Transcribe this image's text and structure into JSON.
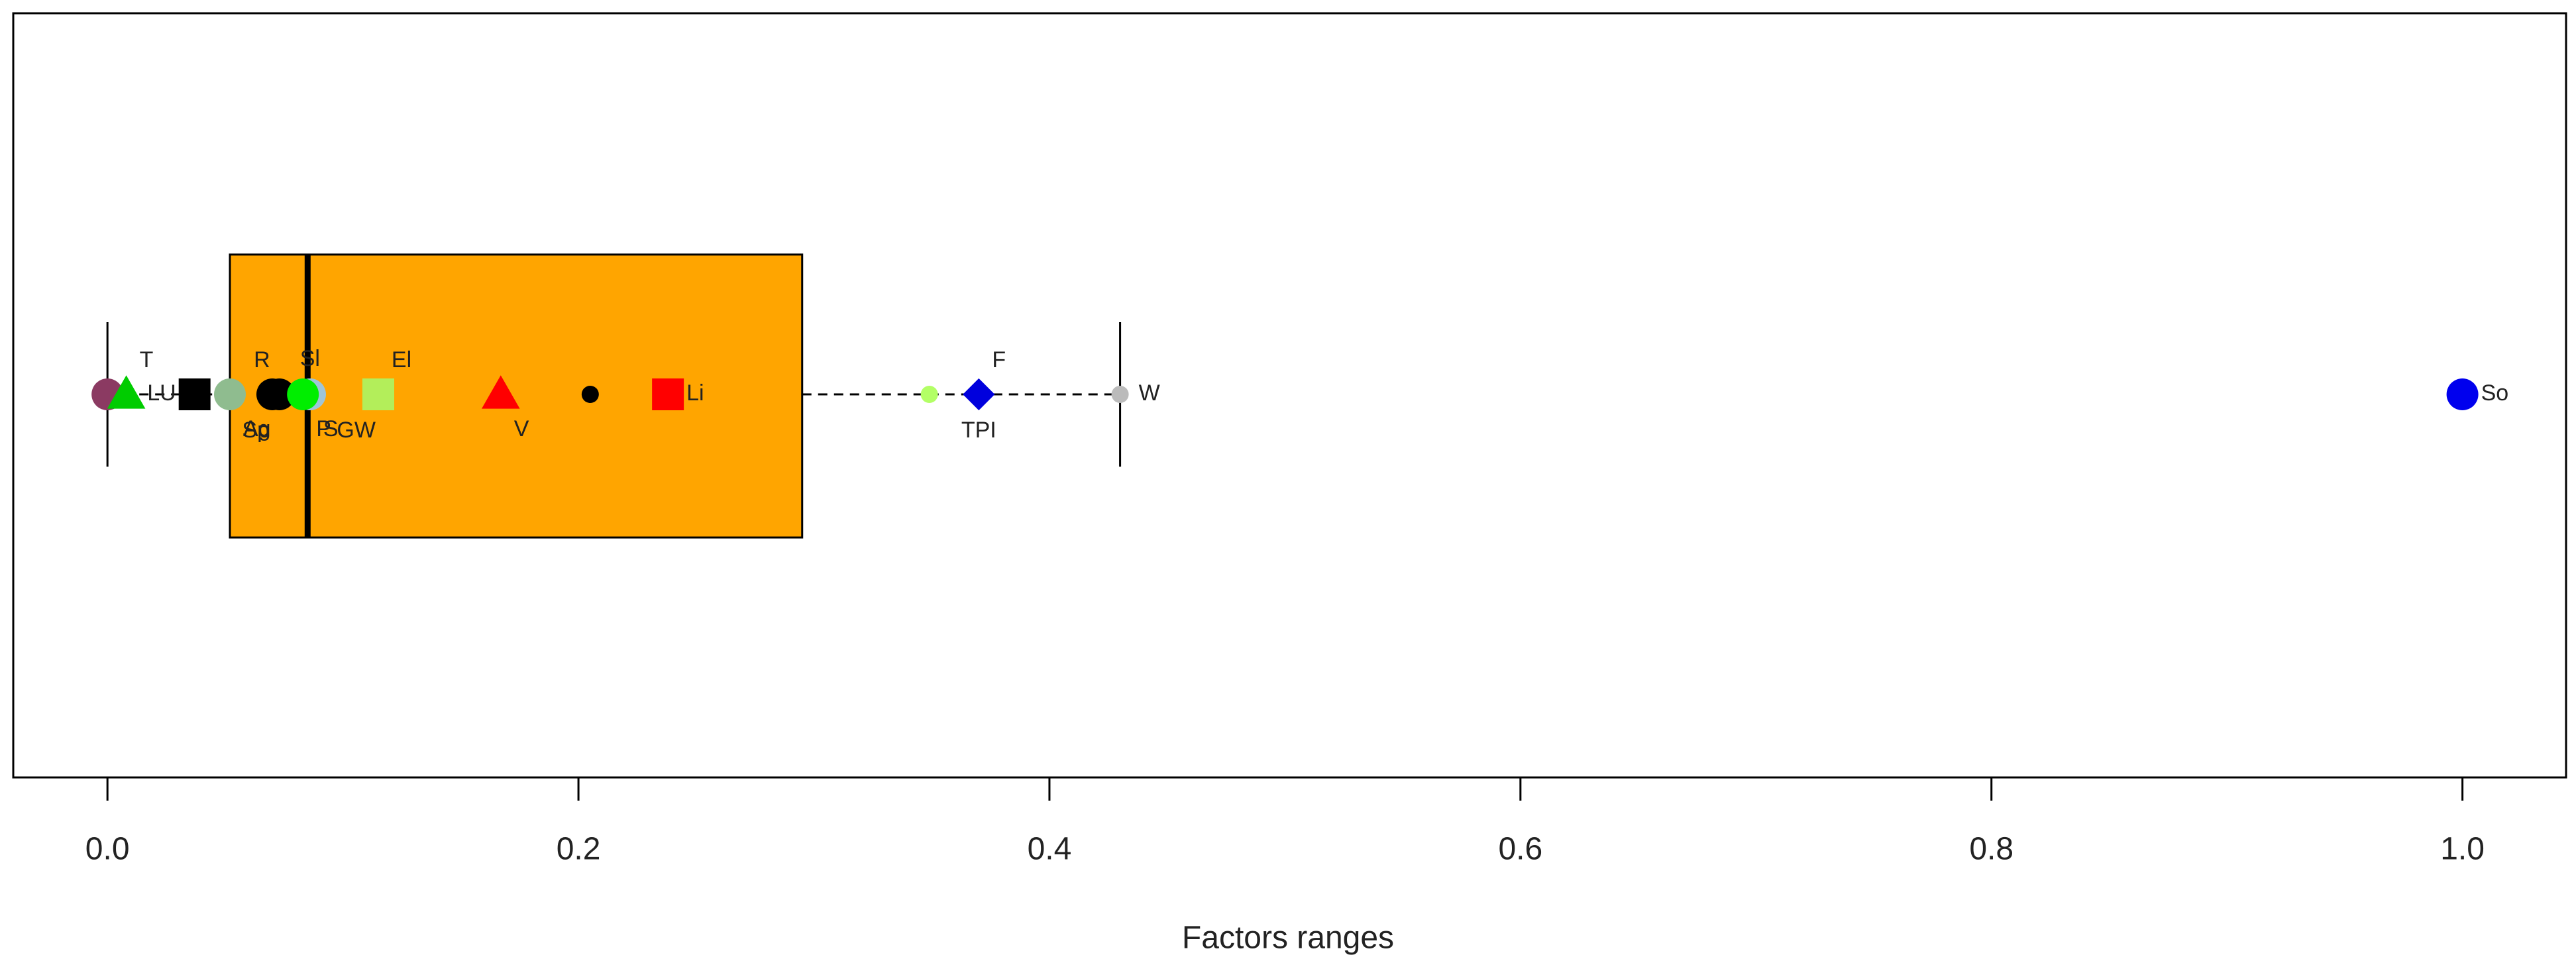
{
  "chart_data": {
    "type": "boxplot",
    "x_label": "Factors ranges",
    "xlim": [
      -0.04,
      1.044
    ],
    "xticks": [
      {
        "value": 0,
        "label": "0.0"
      },
      0.2,
      0.4,
      0.6,
      0.8,
      {
        "value": 1,
        "label": "1.0"
      }
    ],
    "box": {
      "whisker_low": 0,
      "q1": 0.052,
      "median": 0.085,
      "q3": 0.295,
      "whisker_high": 0.43,
      "color": "#FFA500"
    },
    "points": [
      {
        "x": 0.0,
        "shape": "circle",
        "size": "large",
        "color": "#8B3A62"
      },
      {
        "x": 0.008,
        "label": "T",
        "label_pos": "top-right",
        "shape": "triangle",
        "size": "large",
        "color": "#00CC00"
      },
      {
        "x": 0.037,
        "label": "LU",
        "label_pos": "left",
        "shape": "square",
        "size": "large",
        "color": "#000000"
      },
      {
        "x": 0.052,
        "label": "Ag",
        "label_pos": "bottom-right",
        "shape": "circle",
        "size": "large",
        "color": "#8FBC8F"
      },
      {
        "x": 0.073,
        "label": "R",
        "label_pos": "top-left",
        "shape": "circle",
        "size": "large",
        "color": "#000000"
      },
      {
        "x": 0.07,
        "label": "Sp",
        "label_pos": "bottom-left",
        "shape": "circle",
        "size": "large",
        "color": "#000000"
      },
      {
        "x": 0.086,
        "label": "Sl",
        "label_pos": "top",
        "shape": "circle",
        "size": "large",
        "color": "#9FC5D8"
      },
      {
        "x": 0.086,
        "label": "S",
        "label_pos": "bottom-right",
        "shape": "circle",
        "size": "large",
        "color": "#9FC5D8"
      },
      {
        "x": 0.083,
        "label": "P",
        "label_pos": "bottom-right",
        "shape": "circle",
        "size": "large",
        "color": "#00EE00"
      },
      {
        "x": 0.115,
        "label": "El",
        "label_pos": "top-right",
        "shape": "square",
        "size": "large",
        "color": "#B3EE5A"
      },
      {
        "x": 0.115,
        "label": "GW",
        "label_pos": "bottom-left",
        "shape": "square",
        "size": "large",
        "color": "#B3EE5A"
      },
      {
        "x": 0.167,
        "label": "V",
        "label_pos": "bottom-right",
        "shape": "triangle",
        "size": "large",
        "color": "#FF0000"
      },
      {
        "x": 0.205,
        "shape": "circle",
        "size": "small",
        "color": "#000000"
      },
      {
        "x": 0.238,
        "label": "Li",
        "label_pos": "right",
        "shape": "square",
        "size": "large",
        "color": "#FF0000"
      },
      {
        "x": 0.349,
        "shape": "circle",
        "size": "small",
        "color": "#B3FF66"
      },
      {
        "x": 0.37,
        "label": "F",
        "label_pos": "top-right",
        "shape": "diamond",
        "size": "large",
        "color": "#0000DD"
      },
      {
        "x": 0.37,
        "label": "TPI",
        "label_pos": "bottom",
        "shape": "diamond",
        "size": "large",
        "color": "#0000DD"
      },
      {
        "x": 0.43,
        "label": "W",
        "label_pos": "right",
        "shape": "circle",
        "size": "small",
        "color": "#BBBBBB"
      },
      {
        "x": 1.0,
        "label": "So",
        "label_pos": "right",
        "shape": "circle",
        "size": "large",
        "color": "#0000EE"
      }
    ]
  }
}
